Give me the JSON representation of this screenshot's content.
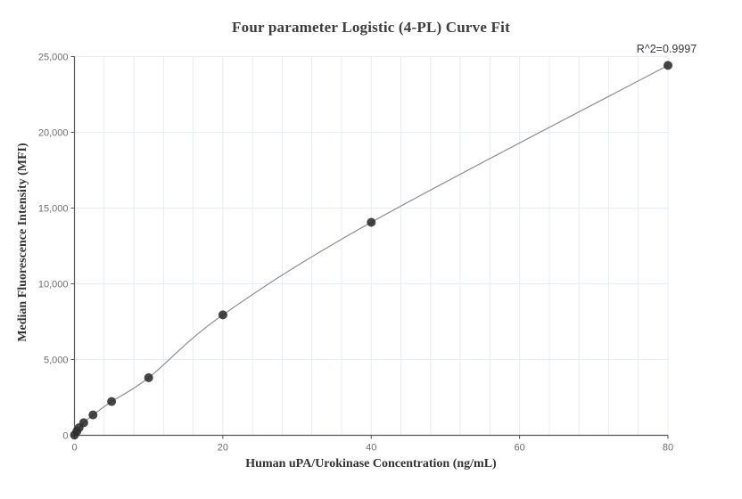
{
  "chart_data": {
    "type": "scatter",
    "title": "Four parameter Logistic (4-PL) Curve Fit",
    "xlabel": "Human uPA/Urokinase Concentration (ng/mL)",
    "ylabel": "Median Fluorescence Intensity (MFI)",
    "annotation": "R^2=0.9997",
    "r_squared": 0.9997,
    "fit_type": "4PL",
    "legend": "none",
    "grid_on": true,
    "xlim": [
      0,
      80
    ],
    "ylim": [
      0,
      25000
    ],
    "x_ticks": [
      {
        "value": 0,
        "label": "0"
      },
      {
        "value": 20,
        "label": "20"
      },
      {
        "value": 40,
        "label": "40"
      },
      {
        "value": 60,
        "label": "60"
      },
      {
        "value": 80,
        "label": "80"
      }
    ],
    "y_ticks": [
      {
        "value": 0,
        "label": "0"
      },
      {
        "value": 5000,
        "label": "5,000"
      },
      {
        "value": 10000,
        "label": "10,000"
      },
      {
        "value": 15000,
        "label": "15,000"
      },
      {
        "value": 20000,
        "label": "20,000"
      },
      {
        "value": 25000,
        "label": "25,000"
      }
    ],
    "grid": {
      "x_step": 4,
      "y_step": 5000
    },
    "series": [
      {
        "name": "standard-curve-points",
        "x": [
          0,
          0.3125,
          0.625,
          1.25,
          2.5,
          5,
          10,
          20,
          40,
          80
        ],
        "y": [
          20,
          260,
          500,
          830,
          1350,
          2230,
          3800,
          7950,
          14060,
          24420
        ]
      }
    ],
    "colors": {
      "grid": "#e7edf6",
      "axis": "#555555",
      "tick_label": "#6e6e6e",
      "curve": "#8f8f8f",
      "point": "#2b2b2b",
      "title": "#3d3d3d",
      "annotation": "#3a3a3a"
    }
  }
}
